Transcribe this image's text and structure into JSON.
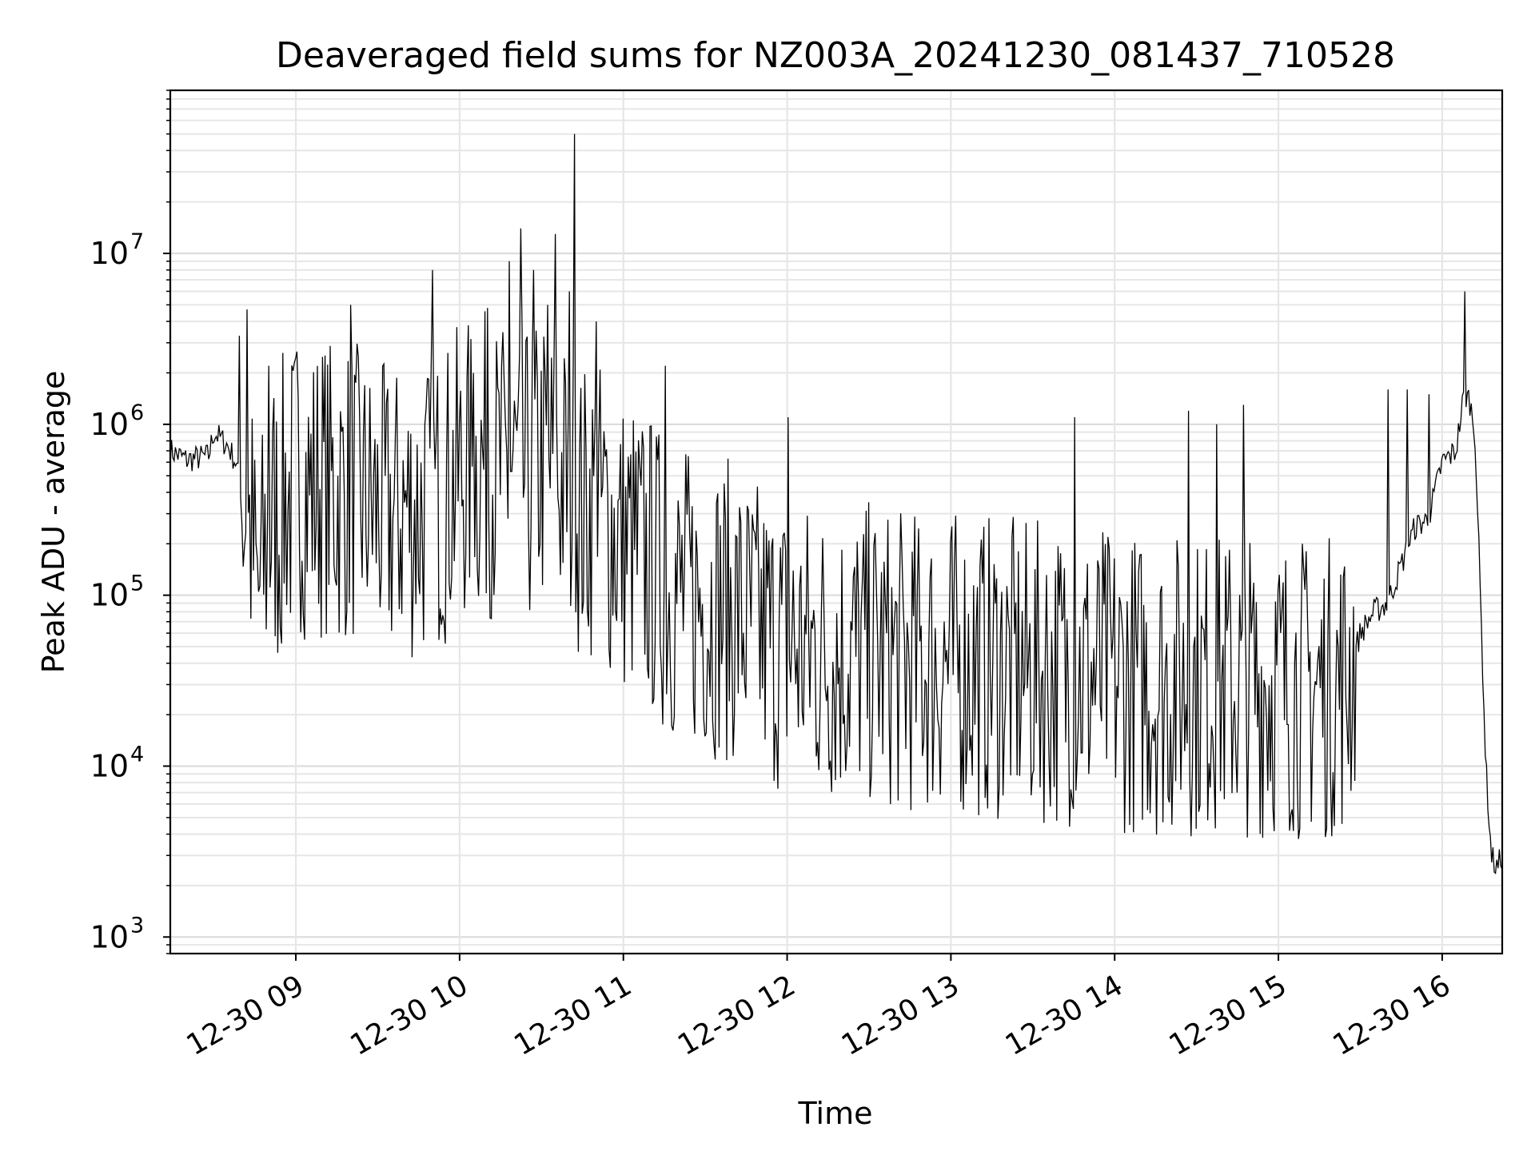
{
  "chart_data": {
    "type": "line",
    "title": "Deaveraged field sums for NZ003A_20241230_081437_710528",
    "xlabel": "Time",
    "ylabel": "Peak ADU - average",
    "yscale": "log",
    "grid": true,
    "legend": "none",
    "xlim": [
      "2024-12-30 08:14",
      "2024-12-30 16:22"
    ],
    "ylim": [
      800,
      90000000
    ],
    "x_ticks": [
      {
        "value": "2024-12-30 09:00",
        "label": "12-30 09"
      },
      {
        "value": "2024-12-30 10:00",
        "label": "12-30 10"
      },
      {
        "value": "2024-12-30 11:00",
        "label": "12-30 11"
      },
      {
        "value": "2024-12-30 12:00",
        "label": "12-30 12"
      },
      {
        "value": "2024-12-30 13:00",
        "label": "12-30 13"
      },
      {
        "value": "2024-12-30 14:00",
        "label": "12-30 14"
      },
      {
        "value": "2024-12-30 15:00",
        "label": "12-30 15"
      },
      {
        "value": "2024-12-30 16:00",
        "label": "12-30 16"
      }
    ],
    "y_ticks": [
      {
        "value": 1000,
        "base": "10",
        "exp": "3"
      },
      {
        "value": 10000,
        "base": "10",
        "exp": "4"
      },
      {
        "value": 100000,
        "base": "10",
        "exp": "5"
      },
      {
        "value": 1000000,
        "base": "10",
        "exp": "6"
      },
      {
        "value": 10000000,
        "base": "10",
        "exp": "7"
      }
    ],
    "series": [
      {
        "color": "#000000",
        "x": [
          "2024-12-30 08:14",
          "2024-12-30 08:20",
          "2024-12-30 08:28",
          "2024-12-30 08:30",
          "2024-12-30 08:35",
          "2024-12-30 08:38",
          "2024-12-30 08:40",
          "2024-12-30 08:42",
          "2024-12-30 08:44",
          "2024-12-30 08:46",
          "2024-12-30 08:48",
          "2024-12-30 08:50",
          "2024-12-30 08:52",
          "2024-12-30 08:54",
          "2024-12-30 08:56",
          "2024-12-30 08:58",
          "2024-12-30 09:00",
          "2024-12-30 09:05",
          "2024-12-30 09:10",
          "2024-12-30 09:15",
          "2024-12-30 09:20",
          "2024-12-30 09:25",
          "2024-12-30 09:30",
          "2024-12-30 09:35",
          "2024-12-30 09:40",
          "2024-12-30 09:45",
          "2024-12-30 09:50",
          "2024-12-30 09:55",
          "2024-12-30 10:00",
          "2024-12-30 10:05",
          "2024-12-30 10:10",
          "2024-12-30 10:15",
          "2024-12-30 10:20",
          "2024-12-30 10:25",
          "2024-12-30 10:30",
          "2024-12-30 10:35",
          "2024-12-30 10:40",
          "2024-12-30 10:45",
          "2024-12-30 10:50",
          "2024-12-30 10:55",
          "2024-12-30 11:00",
          "2024-12-30 11:05",
          "2024-12-30 11:10",
          "2024-12-30 11:15",
          "2024-12-30 11:20",
          "2024-12-30 11:30",
          "2024-12-30 11:40",
          "2024-12-30 11:50",
          "2024-12-30 12:00",
          "2024-12-30 12:15",
          "2024-12-30 12:30",
          "2024-12-30 12:45",
          "2024-12-30 13:00",
          "2024-12-30 13:15",
          "2024-12-30 13:30",
          "2024-12-30 13:45",
          "2024-12-30 14:00",
          "2024-12-30 14:15",
          "2024-12-30 14:30",
          "2024-12-30 14:45",
          "2024-12-30 15:00",
          "2024-12-30 15:15",
          "2024-12-30 15:25",
          "2024-12-30 15:30",
          "2024-12-30 15:35",
          "2024-12-30 15:40",
          "2024-12-30 15:45",
          "2024-12-30 15:50",
          "2024-12-30 15:55",
          "2024-12-30 16:00",
          "2024-12-30 16:05",
          "2024-12-30 16:08",
          "2024-12-30 16:10",
          "2024-12-30 16:12",
          "2024-12-30 16:13",
          "2024-12-30 16:14",
          "2024-12-30 16:16",
          "2024-12-30 16:18",
          "2024-12-30 16:20",
          "2024-12-30 16:22"
        ],
        "y": [
          700000,
          620000,
          650000,
          900000,
          750000,
          600000,
          400000,
          300000,
          200000,
          90000,
          150000,
          200000,
          300000,
          250000,
          400000,
          350000,
          500000,
          400000,
          450000,
          380000,
          420000,
          350000,
          300000,
          280000,
          320000,
          300000,
          350000,
          400000,
          500000,
          550000,
          600000,
          500000,
          550000,
          450000,
          600000,
          500000,
          450000,
          300000,
          350000,
          250000,
          200000,
          180000,
          150000,
          120000,
          100000,
          90000,
          80000,
          60000,
          50000,
          45000,
          45000,
          40000,
          40000,
          38000,
          35000,
          35000,
          32000,
          30000,
          30000,
          30000,
          30000,
          28000,
          32000,
          60000,
          80000,
          90000,
          150000,
          250000,
          280000,
          600000,
          700000,
          1500000,
          1400000,
          900000,
          300000,
          100000,
          10000,
          3000,
          2500,
          3000
        ],
        "spikes": [
          {
            "x": "2024-12-30 08:39",
            "y": 3300000
          },
          {
            "x": "2024-12-30 08:42",
            "y": 4700000
          },
          {
            "x": "2024-12-30 08:50",
            "y": 2200000
          },
          {
            "x": "2024-12-30 09:20",
            "y": 5000000
          },
          {
            "x": "2024-12-30 09:50",
            "y": 8000000
          },
          {
            "x": "2024-12-30 10:05",
            "y": 2000000
          },
          {
            "x": "2024-12-30 10:10",
            "y": 4800000
          },
          {
            "x": "2024-12-30 10:18",
            "y": 9000000
          },
          {
            "x": "2024-12-30 10:22",
            "y": 14000000
          },
          {
            "x": "2024-12-30 10:27",
            "y": 8000000
          },
          {
            "x": "2024-12-30 10:32",
            "y": 5000000
          },
          {
            "x": "2024-12-30 10:35",
            "y": 13000000
          },
          {
            "x": "2024-12-30 10:40",
            "y": 6000000
          },
          {
            "x": "2024-12-30 10:42",
            "y": 50000000
          },
          {
            "x": "2024-12-30 10:50",
            "y": 4000000
          },
          {
            "x": "2024-12-30 11:15",
            "y": 2200000
          },
          {
            "x": "2024-12-30 12:00",
            "y": 1100000
          },
          {
            "x": "2024-12-30 13:45",
            "y": 1100000
          },
          {
            "x": "2024-12-30 14:27",
            "y": 1200000
          },
          {
            "x": "2024-12-30 14:37",
            "y": 1000000
          },
          {
            "x": "2024-12-30 14:47",
            "y": 1300000
          },
          {
            "x": "2024-12-30 15:40",
            "y": 1600000
          },
          {
            "x": "2024-12-30 15:47",
            "y": 1600000
          },
          {
            "x": "2024-12-30 15:55",
            "y": 1500000
          },
          {
            "x": "2024-12-30 16:08",
            "y": 6000000
          }
        ]
      }
    ]
  }
}
